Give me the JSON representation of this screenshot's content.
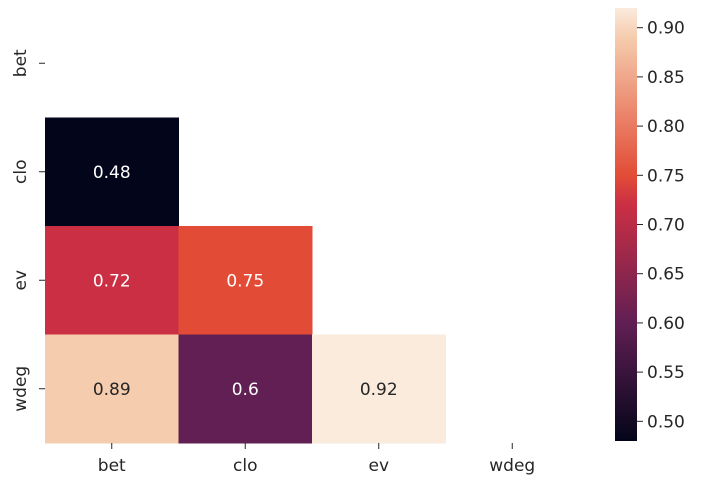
{
  "chart_data": {
    "type": "heatmap",
    "mask": "upper-triangle",
    "x_labels": [
      "bet",
      "clo",
      "ev",
      "wdeg"
    ],
    "y_labels": [
      "bet",
      "clo",
      "ev",
      "wdeg"
    ],
    "cells": [
      {
        "row": 1,
        "col": 0,
        "value": 0.48,
        "label": "0.48"
      },
      {
        "row": 2,
        "col": 0,
        "value": 0.72,
        "label": "0.72"
      },
      {
        "row": 2,
        "col": 1,
        "value": 0.75,
        "label": "0.75"
      },
      {
        "row": 3,
        "col": 0,
        "value": 0.89,
        "label": "0.89"
      },
      {
        "row": 3,
        "col": 1,
        "value": 0.6,
        "label": "0.6"
      },
      {
        "row": 3,
        "col": 2,
        "value": 0.92,
        "label": "0.92"
      }
    ],
    "colorbar": {
      "range": [
        0.48,
        0.92
      ],
      "ticks": [
        "0.50",
        "0.55",
        "0.60",
        "0.65",
        "0.70",
        "0.75",
        "0.80",
        "0.85",
        "0.90"
      ],
      "colormap": "rocket",
      "colors": {
        "0.48": "#03051a",
        "0.60": "#611f53",
        "0.72": "#cb2f44",
        "0.75": "#e24c36",
        "0.89": "#f5ccad",
        "0.92": "#faebdd"
      }
    }
  }
}
